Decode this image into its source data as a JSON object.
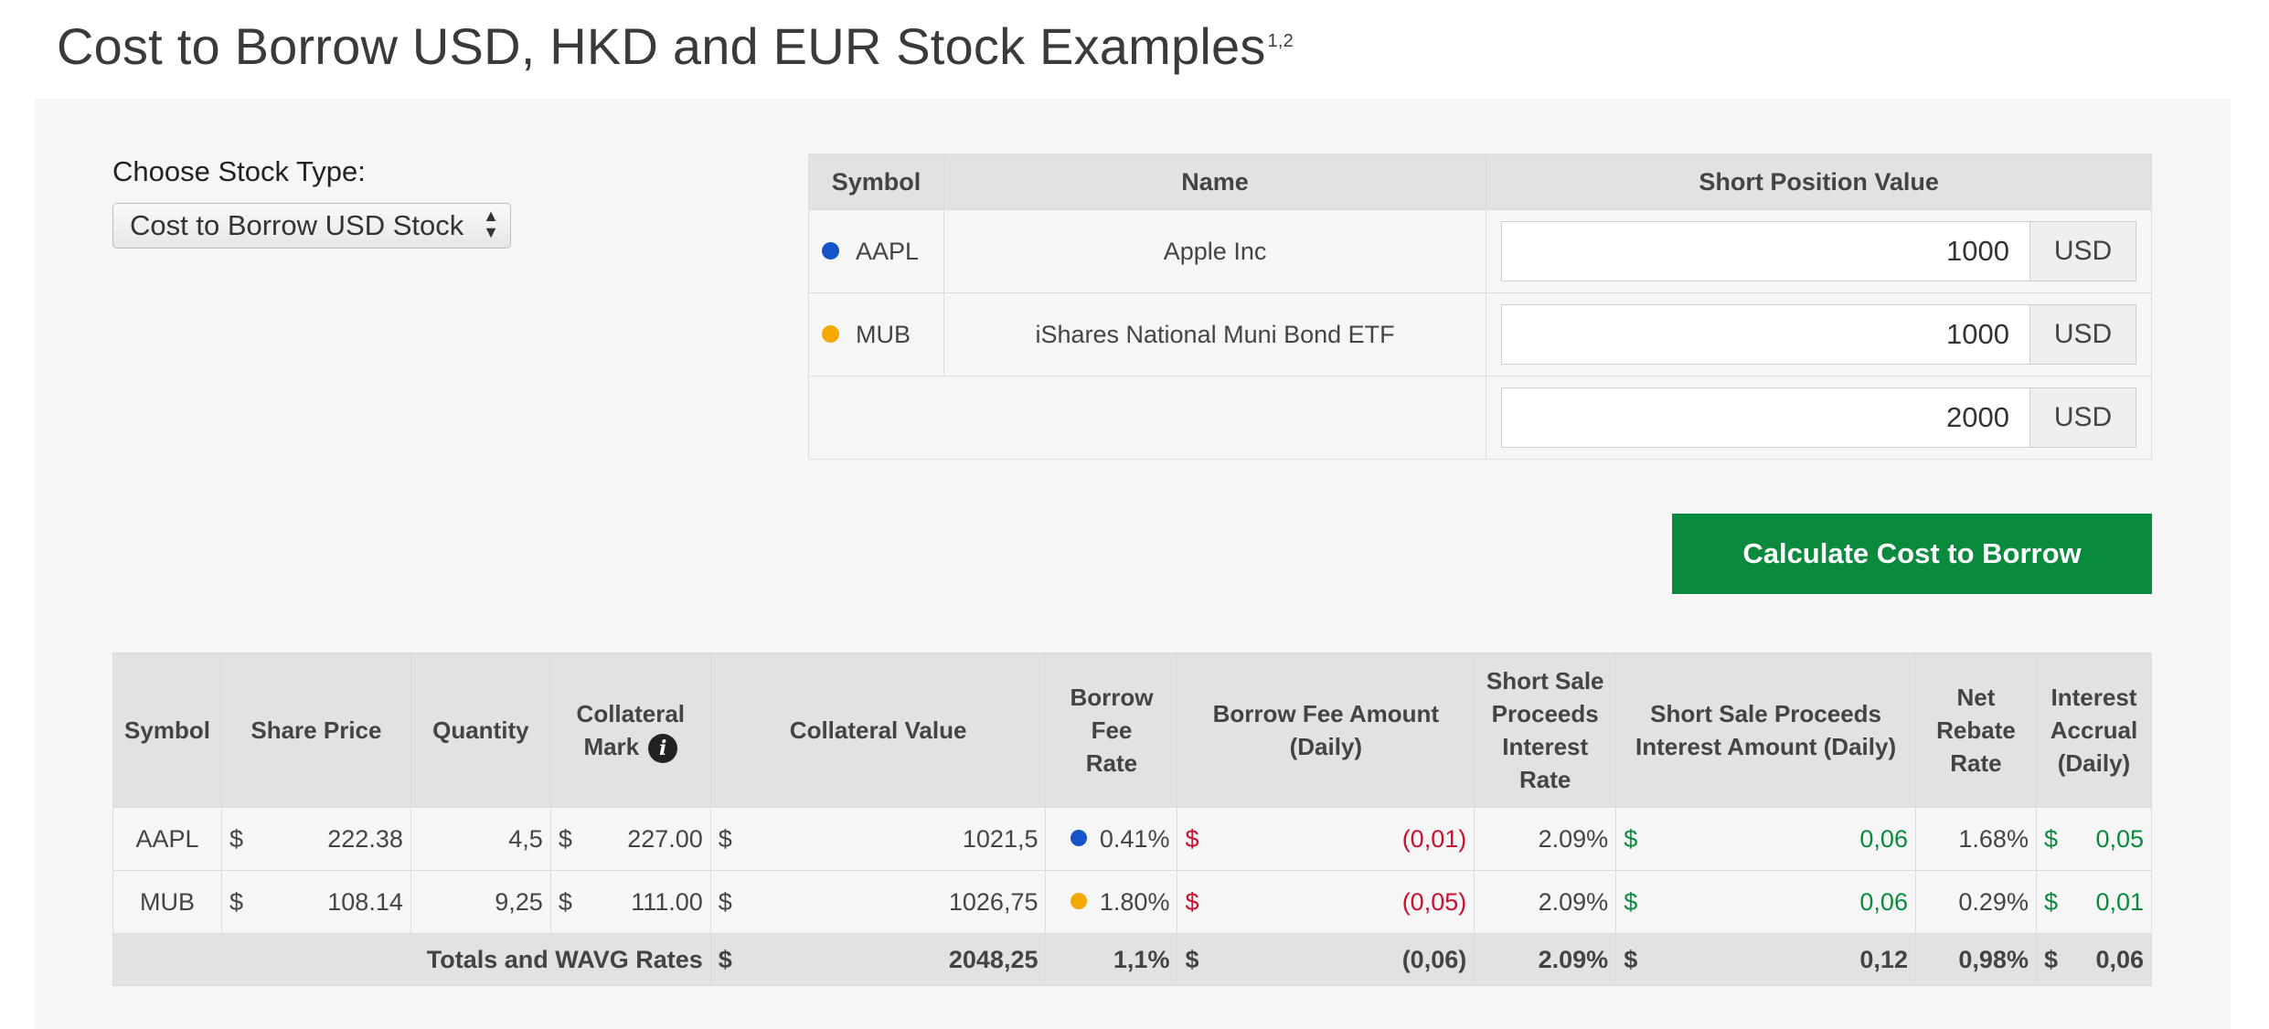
{
  "page": {
    "title": "Cost to Borrow USD, HKD and EUR Stock Examples",
    "title_sup": "1,2"
  },
  "stock_type": {
    "label": "Choose Stock Type:",
    "selected": "Cost to Borrow USD Stock"
  },
  "symbols_table": {
    "headers": {
      "symbol": "Symbol",
      "name": "Name",
      "short_position_value": "Short Position Value"
    },
    "rows": [
      {
        "symbol": "AAPL",
        "name": "Apple Inc",
        "value": "1000",
        "currency": "USD",
        "dot_color": "#1453c8"
      },
      {
        "symbol": "MUB",
        "name": "iShares National Muni Bond ETF",
        "value": "1000",
        "currency": "USD",
        "dot_color": "#f5a800"
      }
    ],
    "total": {
      "value": "2000",
      "currency": "USD"
    }
  },
  "calculate_button": "Calculate Cost to Borrow",
  "results": {
    "headers": {
      "symbol": "Symbol",
      "share_price": "Share Price",
      "quantity": "Quantity",
      "collateral_mark": "Collateral Mark",
      "collateral_value": "Collateral Value",
      "borrow_fee_rate": "Borrow Fee Rate",
      "borrow_fee_amount": "Borrow Fee Amount (Daily)",
      "ssp_interest_rate": "Short Sale Proceeds Interest Rate",
      "ssp_interest_amount": "Short Sale Proceeds Interest Amount (Daily)",
      "net_rebate_rate": "Net Rebate Rate",
      "interest_accrual": "Interest Accrual (Daily)"
    },
    "currency_symbol": "$",
    "info_icon": "info-icon",
    "rows": [
      {
        "symbol": "AAPL",
        "share_price": "222.38",
        "quantity": "4,5",
        "collateral_mark": "227.00",
        "collateral_value": "1021,5",
        "borrow_fee_rate": "0.41%",
        "rate_dot_color": "#1453c8",
        "borrow_fee_amount": "(0,01)",
        "ssp_interest_rate": "2.09%",
        "ssp_interest_amount": "0,06",
        "net_rebate_rate": "1.68%",
        "interest_accrual": "0,05"
      },
      {
        "symbol": "MUB",
        "share_price": "108.14",
        "quantity": "9,25",
        "collateral_mark": "111.00",
        "collateral_value": "1026,75",
        "borrow_fee_rate": "1.80%",
        "rate_dot_color": "#f5a800",
        "borrow_fee_amount": "(0,05)",
        "ssp_interest_rate": "2.09%",
        "ssp_interest_amount": "0,06",
        "net_rebate_rate": "0.29%",
        "interest_accrual": "0,01"
      }
    ],
    "totals": {
      "label": "Totals and WAVG Rates",
      "collateral_value": "2048,25",
      "borrow_fee_rate": "1,1%",
      "borrow_fee_amount": "(0,06)",
      "ssp_interest_rate": "2.09%",
      "ssp_interest_amount": "0,12",
      "net_rebate_rate": "0,98%",
      "interest_accrual": "0,06"
    }
  },
  "colors": {
    "accent_green": "#0a8a3c",
    "negative_red": "#c8102e",
    "header_gray": "#e1e2e4",
    "panel_bg": "#f6f6f6"
  }
}
